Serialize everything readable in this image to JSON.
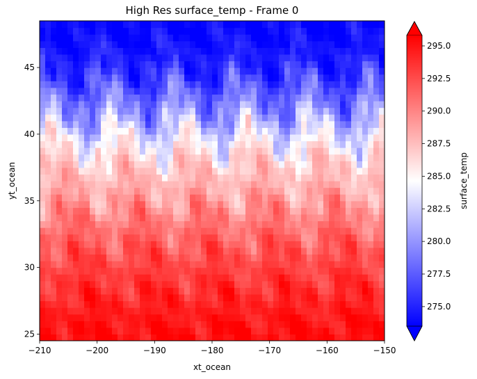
{
  "chart_data": {
    "type": "heatmap",
    "title": "High Res surface_temp - Frame 0",
    "xlabel": "xt_ocean",
    "ylabel": "yt_ocean",
    "xlim": [
      -210,
      -150
    ],
    "ylim": [
      24.5,
      48.5
    ],
    "xticks": [
      -210,
      -200,
      -190,
      -180,
      -170,
      -160,
      -150
    ],
    "xtick_labels": [
      "−210",
      "−200",
      "−190",
      "−180",
      "−170",
      "−160",
      "−150"
    ],
    "yticks": [
      25,
      30,
      35,
      40,
      45
    ],
    "ytick_labels": [
      "25",
      "30",
      "35",
      "40",
      "45"
    ],
    "colorbar": {
      "label": "surface_temp",
      "vmin": 273.5,
      "vmax": 295.8,
      "extend": "both",
      "colormap": [
        "#0000ff",
        "#ffffff",
        "#ff0000"
      ],
      "ticks": [
        275.0,
        277.5,
        280.0,
        282.5,
        285.0,
        287.5,
        290.0,
        292.5,
        295.0
      ],
      "tick_labels": [
        "275.0",
        "277.5",
        "280.0",
        "282.5",
        "285.0",
        "287.5",
        "290.0",
        "292.5",
        "295.0"
      ]
    },
    "field_profile": [
      {
        "lat": 48.5,
        "temp": 273.5
      },
      {
        "lat": 45.0,
        "temp": 275.0
      },
      {
        "lat": 42.0,
        "temp": 279.5
      },
      {
        "lat": 40.0,
        "temp": 283.0
      },
      {
        "lat": 38.5,
        "temp": 286.5
      },
      {
        "lat": 36.0,
        "temp": 288.0
      },
      {
        "lat": 33.0,
        "temp": 291.0
      },
      {
        "lat": 30.0,
        "temp": 293.0
      },
      {
        "lat": 27.0,
        "temp": 294.5
      },
      {
        "lat": 24.5,
        "temp": 295.5
      }
    ]
  }
}
